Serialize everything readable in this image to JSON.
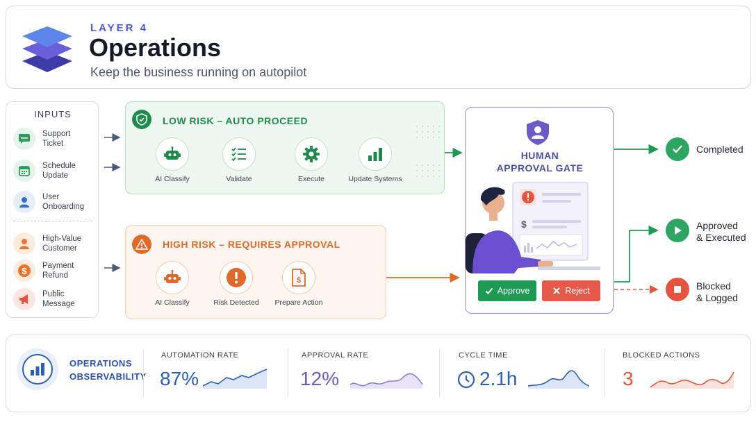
{
  "header": {
    "eyebrow": "LAYER 4",
    "title": "Operations",
    "subtitle": "Keep the business running on autopilot"
  },
  "inputs": {
    "title": "INPUTS",
    "items": [
      {
        "line1": "Support",
        "line2": "Ticket",
        "icon": "chat-icon",
        "color": "#2e9b5b"
      },
      {
        "line1": "Schedule",
        "line2": "Update",
        "icon": "calendar-icon",
        "color": "#2e9b5b"
      },
      {
        "line1": "User",
        "line2": "Onboarding",
        "icon": "user-icon",
        "color": "#2f6fd1"
      },
      {
        "line1": "High-Value",
        "line2": "Customer",
        "icon": "user-icon",
        "color": "#e8742f"
      },
      {
        "line1": "Payment",
        "line2": "Refund",
        "icon": "dollar-icon",
        "color": "#e8742f"
      },
      {
        "line1": "Public",
        "line2": "Message",
        "icon": "megaphone-icon",
        "color": "#e4543e"
      }
    ]
  },
  "low_risk": {
    "title": "LOW RISK – AUTO PROCEED",
    "color": "#1e8a4c",
    "steps": [
      {
        "label": "AI Classify",
        "icon": "robot-icon"
      },
      {
        "label": "Validate",
        "icon": "checklist-icon"
      },
      {
        "label": "Execute",
        "icon": "gear-icon"
      },
      {
        "label": "Update Systems",
        "icon": "bar-chart-icon"
      }
    ]
  },
  "high_risk": {
    "title": "HIGH RISK – REQUIRES APPROVAL",
    "color": "#dd6a2a",
    "steps": [
      {
        "label": "AI Classify",
        "icon": "robot-icon"
      },
      {
        "label": "Risk Detected",
        "icon": "alert-icon"
      },
      {
        "label": "Prepare Action",
        "icon": "document-dollar-icon"
      }
    ]
  },
  "gate": {
    "title_line1": "HUMAN",
    "title_line2": "APPROVAL GATE",
    "approve": "Approve",
    "reject": "Reject"
  },
  "outcomes": [
    {
      "line1": "Completed",
      "line2": "",
      "icon": "check-icon",
      "color": "#2ea562"
    },
    {
      "line1": "Approved",
      "line2": "& Executed",
      "icon": "play-icon",
      "color": "#2ea562"
    },
    {
      "line1": "Blocked",
      "line2": "& Logged",
      "icon": "stop-icon",
      "color": "#e4543e"
    }
  ],
  "observability": {
    "title_line1": "OPERATIONS",
    "title_line2": "OBSERVABILITY",
    "metrics": [
      {
        "label": "AUTOMATION RATE",
        "value": "87%",
        "color": "#2b5fb4"
      },
      {
        "label": "APPROVAL RATE",
        "value": "12%",
        "color": "#6b5bc4"
      },
      {
        "label": "CYCLE TIME",
        "value": "2.1h",
        "color": "#2b5fb4"
      },
      {
        "label": "BLOCKED ACTIONS",
        "value": "3",
        "color": "#e4543e"
      }
    ]
  }
}
